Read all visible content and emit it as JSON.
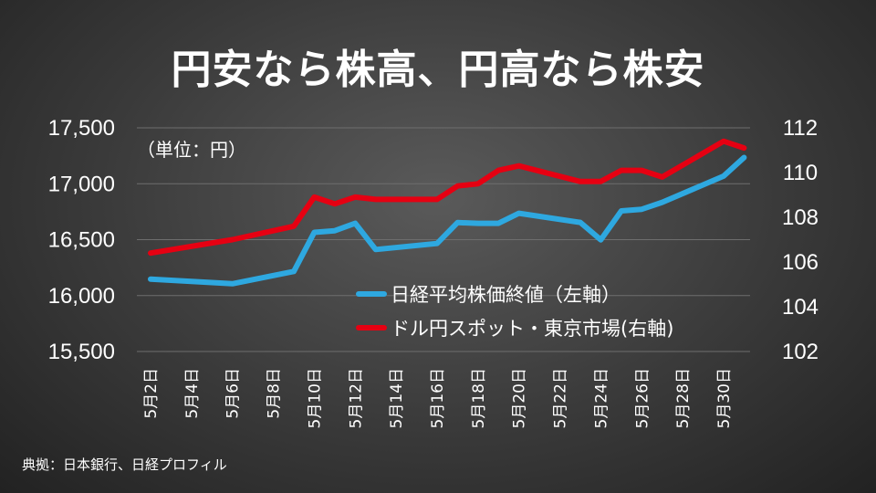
{
  "title": "円安なら株高、円高なら株安",
  "unit": "（単位：円）",
  "source": "典拠：日本銀行、日経プロフィル",
  "colors": {
    "nikkei": "#2ea8e0",
    "usdjpy": "#e60012",
    "grid": "#6e6e6e"
  },
  "chart_data": {
    "type": "line",
    "x_ticks": [
      "5月2日",
      "5月4日",
      "5月6日",
      "5月8日",
      "5月10日",
      "5月12日",
      "5月14日",
      "5月16日",
      "5月18日",
      "5月20日",
      "5月22日",
      "5月24日",
      "5月26日",
      "5月28日",
      "5月30日"
    ],
    "y_left_ticks": [
      "17,500",
      "17,000",
      "16,500",
      "16,000",
      "15,500"
    ],
    "y_right_ticks": [
      "112",
      "110",
      "108",
      "106",
      "104",
      "102"
    ],
    "y_left_lim": [
      15500,
      17500
    ],
    "y_right_lim": [
      102,
      112
    ],
    "grid": true,
    "legend_position": "center-right",
    "series": [
      {
        "name": "日経平均株価終値（左軸）",
        "axis": "left",
        "x": [
          "5月2日",
          "5月6日",
          "5月9日",
          "5月10日",
          "5月11日",
          "5月12日",
          "5月13日",
          "5月16日",
          "5月17日",
          "5月18日",
          "5月19日",
          "5月20日",
          "5月23日",
          "5月24日",
          "5月25日",
          "5月26日",
          "5月27日",
          "5月30日",
          "5月31日"
        ],
        "values": [
          16147,
          16106,
          16216,
          16565,
          16580,
          16646,
          16412,
          16466,
          16653,
          16646,
          16646,
          16736,
          16654,
          16498,
          16757,
          16772,
          16834,
          17068,
          17235
        ]
      },
      {
        "name": "ドル円スポット・東京市場(右軸)",
        "axis": "right",
        "x": [
          "5月2日",
          "5月6日",
          "5月9日",
          "5月10日",
          "5月11日",
          "5月12日",
          "5月13日",
          "5月16日",
          "5月17日",
          "5月18日",
          "5月19日",
          "5月20日",
          "5月23日",
          "5月24日",
          "5月25日",
          "5月26日",
          "5月27日",
          "5月30日",
          "5月31日"
        ],
        "values": [
          106.4,
          107.0,
          107.6,
          108.9,
          108.6,
          108.9,
          108.8,
          108.8,
          109.4,
          109.5,
          110.1,
          110.3,
          109.6,
          109.6,
          110.1,
          110.1,
          109.8,
          111.4,
          111.1
        ]
      }
    ]
  }
}
